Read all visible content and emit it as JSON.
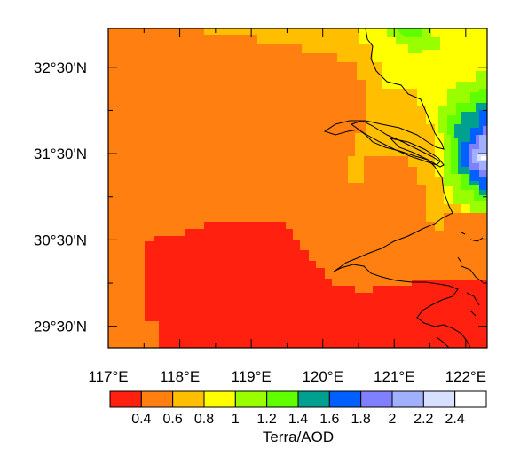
{
  "map": {
    "x_ticks": [
      "117°E",
      "118°E",
      "119°E",
      "120°E",
      "121°E",
      "122°E"
    ],
    "y_ticks": [
      "32°30'N",
      "31°30'N",
      "30°30'N",
      "29°30'N"
    ],
    "x_tick_values": [
      117,
      118,
      119,
      120,
      121,
      122
    ],
    "y_tick_values": [
      32.5,
      31.5,
      30.5,
      29.5
    ],
    "lon_range": [
      117,
      122.3
    ],
    "lat_range": [
      29.25,
      32.95
    ]
  },
  "colorbar": {
    "title": "Terra/AOD",
    "labels": [
      "0.4",
      "0.6",
      "0.8",
      "1",
      "1.2",
      "1.4",
      "1.6",
      "1.8",
      "2",
      "2.2",
      "2.4"
    ],
    "colors": [
      "#ff2010",
      "#ff7f10",
      "#ffbf00",
      "#ffff00",
      "#99ff00",
      "#5fff00",
      "#00a090",
      "#0060ff",
      "#8080ff",
      "#a0b0ff",
      "#d8e0ff",
      "#ffffff"
    ]
  }
}
